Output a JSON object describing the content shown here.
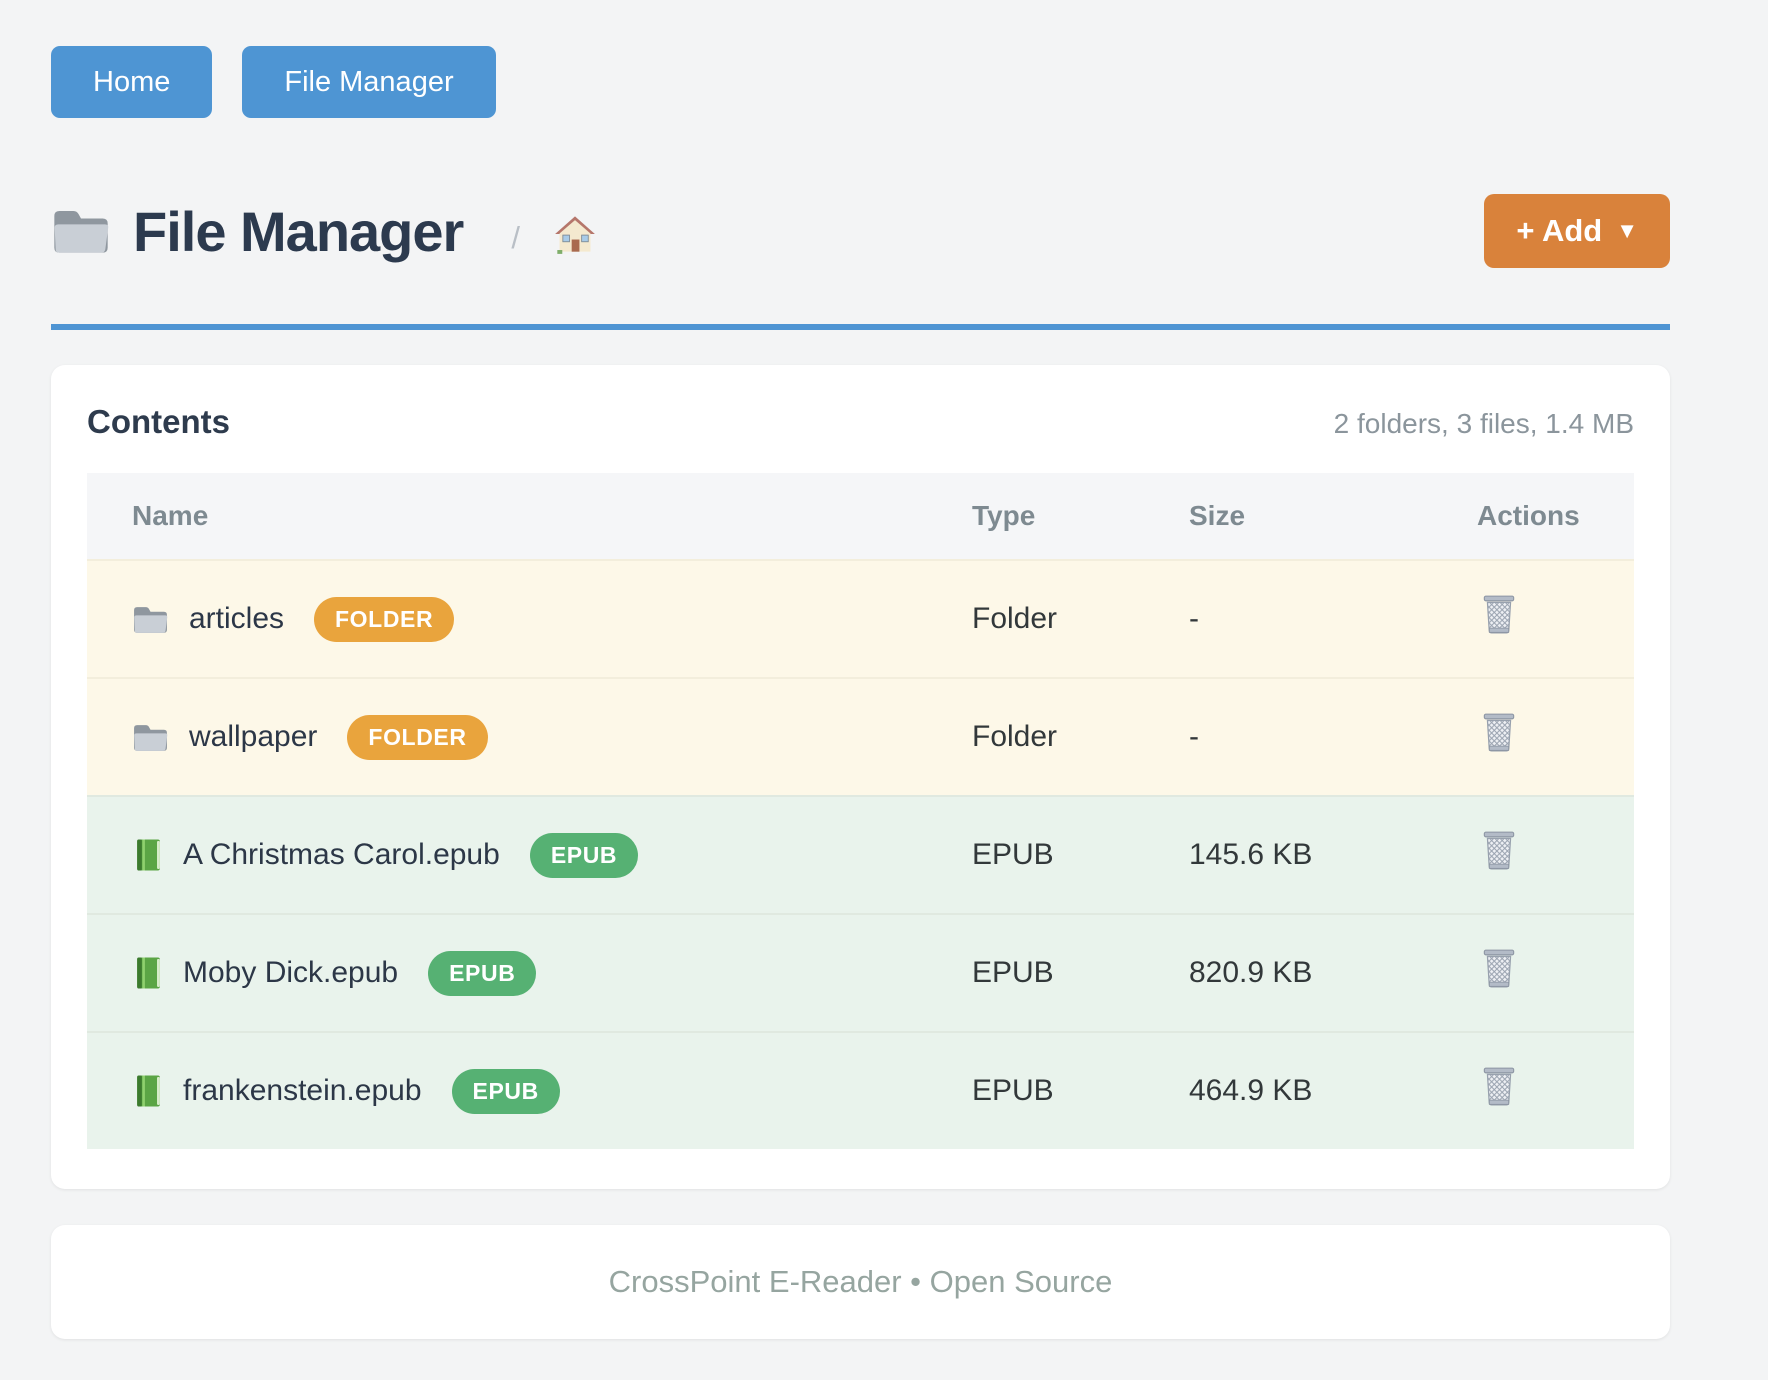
{
  "nav": {
    "buttons": [
      {
        "label": "Home"
      },
      {
        "label": "File Manager"
      }
    ]
  },
  "page_header": {
    "title_icon": "folder-icon",
    "title": "File Manager",
    "path_separator": "/",
    "home_icon": "house-icon",
    "add_button": {
      "label": "+ Add",
      "caret": "▼"
    }
  },
  "content_card": {
    "heading": "Contents",
    "summary": "2 folders, 3 files, 1.4 MB",
    "table": {
      "columns": [
        "Name",
        "Type",
        "Size",
        "Actions"
      ],
      "rows": [
        {
          "icon": "folder-icon",
          "name": "articles",
          "badge": "FOLDER",
          "category": "folder",
          "type": "Folder",
          "size": "-",
          "action_icon": "trash-icon"
        },
        {
          "icon": "folder-icon",
          "name": "wallpaper",
          "badge": "FOLDER",
          "category": "folder",
          "type": "Folder",
          "size": "-",
          "action_icon": "trash-icon"
        },
        {
          "icon": "book-icon",
          "name": "A Christmas Carol.epub",
          "badge": "EPUB",
          "category": "epub",
          "type": "EPUB",
          "size": "145.6 KB",
          "action_icon": "trash-icon"
        },
        {
          "icon": "book-icon",
          "name": "Moby Dick.epub",
          "badge": "EPUB",
          "category": "epub",
          "type": "EPUB",
          "size": "820.9 KB",
          "action_icon": "trash-icon"
        },
        {
          "icon": "book-icon",
          "name": "frankenstein.epub",
          "badge": "EPUB",
          "category": "epub",
          "type": "EPUB",
          "size": "464.9 KB",
          "action_icon": "trash-icon"
        }
      ]
    }
  },
  "footer": {
    "text": "CrossPoint E-Reader • Open Source"
  },
  "colors": {
    "nav_button": "#4e95d3",
    "accent_divider": "#4e94d3",
    "add_button": "#d9823b",
    "folder_badge": "#e9a43d",
    "epub_badge": "#56b173",
    "folder_row_bg": "#fdf8e8",
    "epub_row_bg": "#e9f3ec"
  }
}
